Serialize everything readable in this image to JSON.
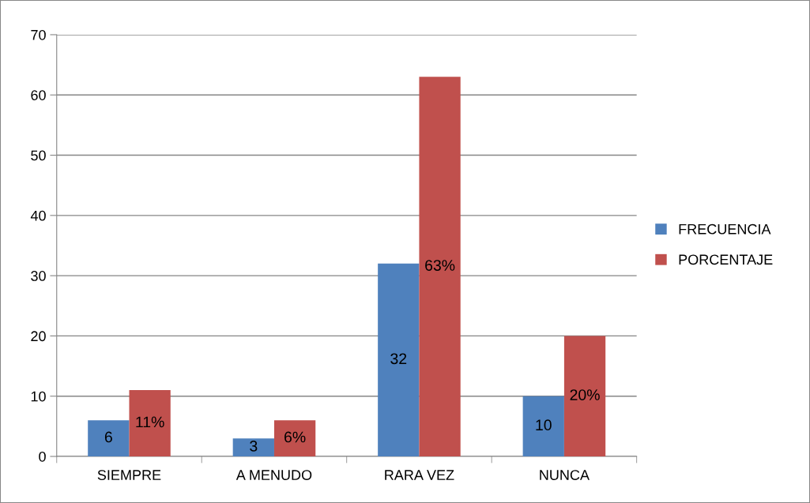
{
  "chart_data": {
    "type": "bar",
    "categories": [
      "SIEMPRE",
      "A MENUDO",
      "RARA VEZ",
      "NUNCA"
    ],
    "series": [
      {
        "name": "FRECUENCIA",
        "color": "#4f81bd",
        "values": [
          6,
          3,
          32,
          10
        ],
        "value_labels": [
          "6",
          "3",
          "32",
          "10"
        ]
      },
      {
        "name": "PORCENTAJE",
        "color": "#c0504d",
        "values": [
          11,
          6,
          63,
          20
        ],
        "value_labels": [
          "11%",
          "6%",
          "63%",
          "20%"
        ]
      }
    ],
    "ylim": [
      0,
      70
    ],
    "yticks": [
      0,
      10,
      20,
      30,
      40,
      50,
      60,
      70
    ],
    "grid": "y",
    "legend": "right"
  }
}
